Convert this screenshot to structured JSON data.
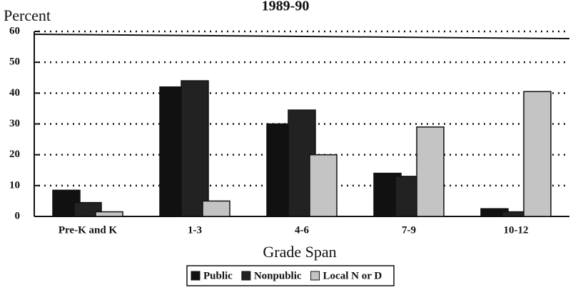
{
  "chart_data": {
    "type": "bar",
    "title": "1989-90",
    "y_label": "Percent",
    "x_label": "Grade Span",
    "categories": [
      "Pre-K and K",
      "1-3",
      "4-6",
      "7-9",
      "10-12"
    ],
    "series": [
      {
        "name": "Public",
        "color": "#111111",
        "values": [
          8.5,
          42,
          30,
          14,
          2.5
        ]
      },
      {
        "name": "Nonpublic",
        "color": "#222222",
        "values": [
          4.5,
          44,
          34.5,
          13,
          1.5
        ]
      },
      {
        "name": "Local N or D",
        "color": "#c4c4c4",
        "values": [
          1.5,
          5,
          20,
          29,
          40.5
        ]
      }
    ],
    "ylim": [
      0,
      60
    ],
    "yticks": [
      0,
      10,
      20,
      30,
      40,
      50,
      60
    ],
    "grid": true
  }
}
